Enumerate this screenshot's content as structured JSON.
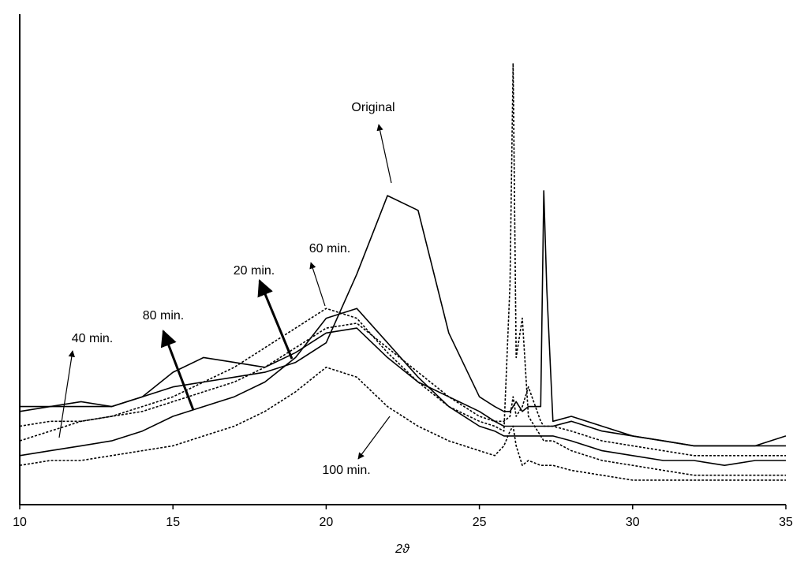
{
  "chart_data": {
    "type": "line",
    "x_label": "2ϑ",
    "x": [
      10,
      11,
      12,
      13,
      14,
      15,
      16,
      17,
      18,
      19,
      20,
      21,
      22,
      23,
      24,
      25,
      25.5,
      25.8,
      26,
      26.1,
      26.2,
      26.4,
      26.6,
      27,
      27.1,
      27.2,
      27.4,
      28,
      29,
      30,
      31,
      32,
      33,
      34,
      35
    ],
    "series": [
      {
        "name": "Original",
        "color": "#000000",
        "dashed": false,
        "values": [
          19,
          20,
          20,
          20,
          22,
          24,
          25,
          26,
          27,
          29,
          33,
          47,
          63,
          60,
          35,
          22,
          20,
          19,
          19,
          20,
          21,
          19,
          20,
          20,
          64,
          44,
          17,
          18,
          16,
          14,
          13,
          12,
          12,
          12,
          14
        ]
      },
      {
        "name": "40 min.",
        "color": "#000000",
        "dashed": false,
        "values": [
          20,
          20,
          21,
          20,
          22,
          27,
          30,
          29,
          28,
          31,
          35,
          36,
          30,
          25,
          22,
          19,
          17,
          16,
          16,
          16,
          16,
          16,
          16,
          16,
          16,
          16,
          16,
          17,
          15,
          14,
          13,
          12,
          12,
          12,
          12
        ]
      },
      {
        "name": "20 min.",
        "color": "#000000",
        "dashed": false,
        "values": [
          10,
          11,
          12,
          13,
          15,
          18,
          20,
          22,
          25,
          30,
          38,
          40,
          33,
          26,
          20,
          16,
          15,
          14,
          14,
          14,
          14,
          14,
          14,
          14,
          14,
          14,
          14,
          13,
          11,
          10,
          9,
          9,
          8,
          9,
          9
        ]
      },
      {
        "name": "60 min.",
        "color": "#000000",
        "dashed": true,
        "values": [
          13,
          15,
          17,
          18,
          20,
          22,
          25,
          28,
          32,
          36,
          40,
          38,
          31,
          25,
          20,
          17,
          16,
          15,
          45,
          90,
          30,
          38,
          18,
          14,
          13,
          13,
          13,
          11,
          9,
          8,
          7,
          6,
          6,
          6,
          6
        ]
      },
      {
        "name": "80 min.",
        "color": "#000000",
        "dashed": true,
        "values": [
          16,
          17,
          17,
          18,
          19,
          21,
          23,
          25,
          28,
          32,
          36,
          37,
          32,
          27,
          22,
          18,
          17,
          17,
          18,
          22,
          18,
          20,
          24,
          17,
          16,
          16,
          16,
          15,
          13,
          12,
          11,
          10,
          10,
          10,
          10
        ]
      },
      {
        "name": "100 min.",
        "color": "#000000",
        "dashed": true,
        "values": [
          8,
          9,
          9,
          10,
          11,
          12,
          14,
          16,
          19,
          23,
          28,
          26,
          20,
          16,
          13,
          11,
          10,
          12,
          15,
          16,
          12,
          8,
          9,
          8,
          8,
          8,
          8,
          7,
          6,
          5,
          5,
          5,
          5,
          5,
          5
        ]
      }
    ],
    "annotations": [
      "Original",
      "60 min.",
      "20 min.",
      "80 min.",
      "40 min.",
      "100 min."
    ],
    "xlim": [
      10,
      35
    ],
    "xticks": [
      10,
      15,
      20,
      25,
      30,
      35
    ],
    "ylim": [
      0,
      100
    ]
  }
}
